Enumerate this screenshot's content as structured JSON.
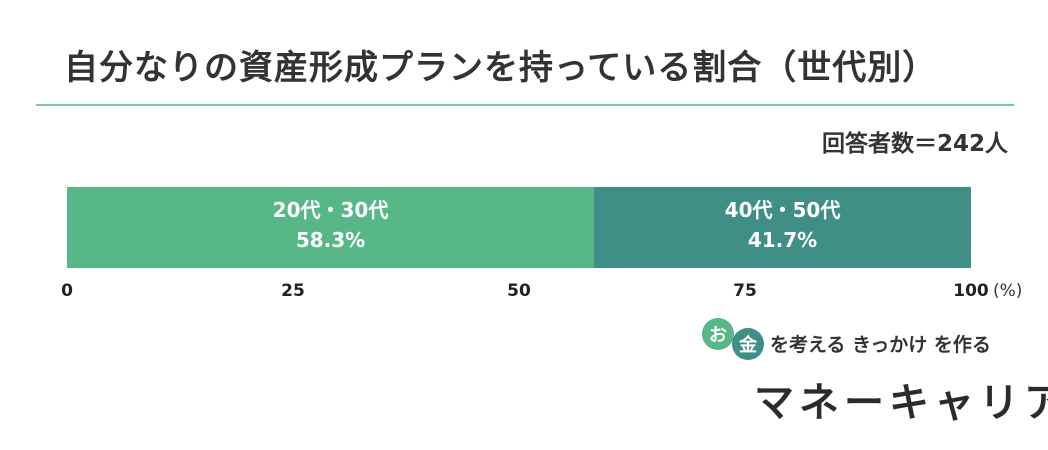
{
  "title": "自分なりの資産形成プランを持っている割合（世代別）",
  "respondents": "回答者数＝242人",
  "chart_data": {
    "type": "bar",
    "orientation": "horizontal-stacked",
    "xlim": [
      0,
      100
    ],
    "x_ticks": [
      "0",
      "25",
      "50",
      "75",
      "100"
    ],
    "x_unit": "(%)",
    "grid": false,
    "series": [
      {
        "name": "20代・30代",
        "value": 58.3,
        "label": "58.3%",
        "color": "#57b786"
      },
      {
        "name": "40代・50代",
        "value": 41.7,
        "label": "41.7%",
        "color": "#3f8f87"
      }
    ]
  },
  "logo": {
    "bubble1": "お",
    "bubble2": "金",
    "tagline": "を考える きっかけ を作る",
    "brand": "マネーキャリア"
  }
}
